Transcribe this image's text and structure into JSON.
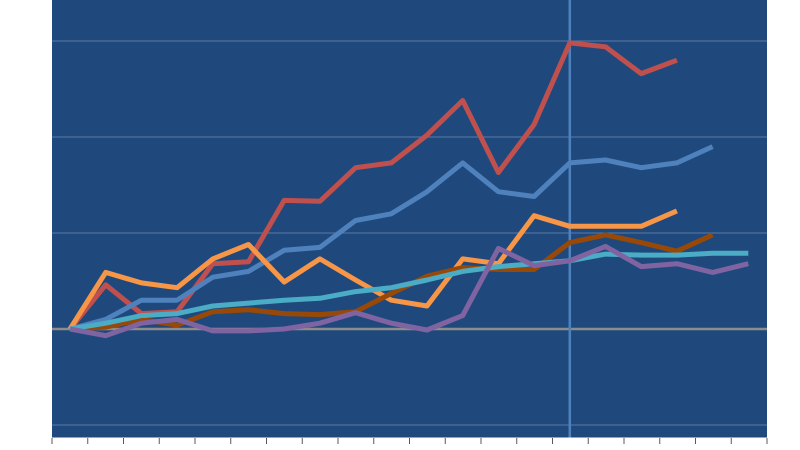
{
  "chart_data": {
    "type": "line",
    "title": "",
    "xlabel": "",
    "ylabel": "",
    "x": [
      0,
      1,
      2,
      3,
      4,
      5,
      6,
      7,
      8,
      9,
      10,
      11,
      12,
      13,
      14,
      15,
      16,
      17,
      18,
      19
    ],
    "ylim": [
      -1,
      4
    ],
    "yticks": [
      -1,
      0,
      1,
      2,
      3
    ],
    "ytick_labels": [
      "",
      "",
      "",
      "",
      ""
    ],
    "xticks_count": 20,
    "grid": true,
    "legend": "none",
    "highlight_x": 14,
    "series": [
      {
        "color": "#c0504d",
        "values": [
          0,
          0.46,
          0.16,
          0.18,
          0.68,
          0.7,
          1.34,
          1.33,
          1.68,
          1.73,
          2.02,
          2.38,
          1.63,
          2.13,
          2.98,
          2.94,
          2.66,
          2.8,
          null,
          null
        ]
      },
      {
        "color": "#4f81bd",
        "values": [
          0,
          0.1,
          0.3,
          0.3,
          0.54,
          0.6,
          0.82,
          0.85,
          1.13,
          1.2,
          1.43,
          1.73,
          1.43,
          1.38,
          1.73,
          1.76,
          1.68,
          1.73,
          1.9,
          null
        ]
      },
      {
        "color": "#f79646",
        "values": [
          0,
          0.59,
          0.48,
          0.43,
          0.73,
          0.88,
          0.49,
          0.73,
          0.51,
          0.3,
          0.24,
          0.73,
          0.68,
          1.18,
          1.07,
          1.07,
          1.07,
          1.23,
          null,
          null
        ]
      },
      {
        "color": "#984807",
        "values": [
          0,
          0.02,
          0.1,
          0.04,
          0.18,
          0.2,
          0.16,
          0.15,
          0.18,
          0.37,
          0.55,
          0.64,
          0.62,
          0.62,
          0.9,
          0.98,
          0.9,
          0.81,
          0.98,
          null
        ]
      },
      {
        "color": "#4bacc6",
        "values": [
          0,
          0.06,
          0.14,
          0.16,
          0.24,
          0.27,
          0.3,
          0.32,
          0.39,
          0.43,
          0.51,
          0.6,
          0.65,
          0.68,
          0.71,
          0.78,
          0.77,
          0.77,
          0.79,
          0.79
        ]
      },
      {
        "color": "#8064a2",
        "values": [
          0,
          -0.07,
          0.06,
          0.1,
          -0.02,
          -0.02,
          0,
          0.06,
          0.17,
          0.06,
          -0.01,
          0.14,
          0.84,
          0.66,
          0.71,
          0.86,
          0.65,
          0.68,
          0.59,
          0.68
        ]
      }
    ]
  }
}
